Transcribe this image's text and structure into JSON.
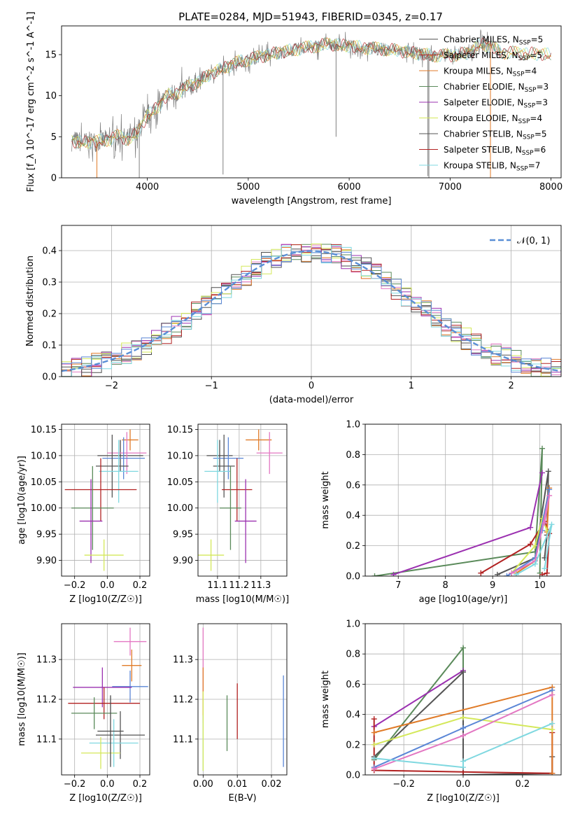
{
  "figure_title": "PLATE=0284, MJD=51943, FIBERID=0345, z=0.17",
  "colors": {
    "Chabrier MILES": "#4b4b4b",
    "Salpeter MILES": "#e377c2",
    "Kroupa MILES": "#e07b28",
    "Chabrier ELODIE": "#5a8a5a",
    "Salpeter ELODIE": "#9b30b0",
    "Kroupa ELODIE": "#d4e85a",
    "Chabrier STELIB": "#555555",
    "Salpeter STELIB": "#b22222",
    "Kroupa STELIB": "#7fd8e0",
    "blue": "#5a86d6",
    "normal_curve": "#5a8fd6",
    "spectrum_grey": "#7f7f7f",
    "grid": "#b0b0b0"
  },
  "chart_data": [
    {
      "id": "spectrum",
      "type": "line",
      "title": "PLATE=0284, MJD=51943, FIBERID=0345, z=0.17",
      "xlabel": "wavelength [Angstrom, rest frame]",
      "ylabel": "Flux [f_λ 10^-17 erg cm^-2 s^-1 A^-1]",
      "xlim": [
        3150,
        8100
      ],
      "ylim": [
        0,
        18.5
      ],
      "xticks": [
        4000,
        5000,
        6000,
        7000,
        8000
      ],
      "yticks": [
        0,
        5,
        10,
        15
      ],
      "grid": false,
      "legend_loc": "right",
      "legend": [
        {
          "label": "Chabrier MILES, N",
          "sub": "SSP",
          "n": "=5",
          "color_key": "Chabrier MILES"
        },
        {
          "label": "Salpeter MILES, N",
          "sub": "SSP",
          "n": "=5",
          "color_key": "Salpeter STELIB"
        },
        {
          "label": "Kroupa MILES, N",
          "sub": "SSP",
          "n": "=4",
          "color_key": "Kroupa MILES"
        },
        {
          "label": "Chabrier ELODIE, N",
          "sub": "SSP",
          "n": "=3",
          "color_key": "Chabrier ELODIE"
        },
        {
          "label": "Salpeter ELODIE, N",
          "sub": "SSP",
          "n": "=3",
          "color_key": "Salpeter ELODIE"
        },
        {
          "label": "Kroupa ELODIE, N",
          "sub": "SSP",
          "n": "=4",
          "color_key": "Kroupa ELODIE"
        },
        {
          "label": "Chabrier STELIB, N",
          "sub": "SSP",
          "n": "=5",
          "color_key": "Chabrier STELIB"
        },
        {
          "label": "Salpeter STELIB, N",
          "sub": "SSP",
          "n": "=6",
          "color_key": "Salpeter STELIB"
        },
        {
          "label": "Kroupa STELIB, N",
          "sub": "SSP",
          "n": "=7",
          "color_key": "Kroupa STELIB"
        }
      ],
      "continuum": [
        [
          3250,
          4.5
        ],
        [
          3400,
          4.3
        ],
        [
          3600,
          4.6
        ],
        [
          3700,
          5.1
        ],
        [
          3800,
          4.7
        ],
        [
          3900,
          5.4
        ],
        [
          4000,
          7.6
        ],
        [
          4100,
          8.6
        ],
        [
          4200,
          10.0
        ],
        [
          4300,
          10.4
        ],
        [
          4500,
          11.7
        ],
        [
          4700,
          13.1
        ],
        [
          4900,
          14.1
        ],
        [
          5200,
          15.0
        ],
        [
          5500,
          15.7
        ],
        [
          5800,
          16.3
        ],
        [
          6100,
          15.9
        ],
        [
          6400,
          15.6
        ],
        [
          6600,
          15.3
        ],
        [
          6800,
          14.9
        ],
        [
          7000,
          14.9
        ],
        [
          7200,
          15.2
        ],
        [
          7300,
          16.4
        ],
        [
          7400,
          16.0
        ],
        [
          7500,
          15.3
        ],
        [
          8000,
          15.0
        ]
      ],
      "spikes": [
        [
          4750,
          0.4
        ],
        [
          5870,
          5.0
        ],
        [
          6790,
          0.0
        ],
        [
          6780,
          0.2
        ],
        [
          7400,
          0.0
        ],
        [
          3500,
          0.0
        ],
        [
          3920,
          0.0
        ]
      ]
    },
    {
      "id": "residuals",
      "type": "histogram",
      "xlabel": "(data-model)/error",
      "ylabel": "Normed distribution",
      "xlim": [
        -2.5,
        2.5
      ],
      "ylim": [
        0,
        0.48
      ],
      "xticks": [
        -2,
        -1,
        0,
        1,
        2
      ],
      "yticks": [
        0.0,
        0.1,
        0.2,
        0.3,
        0.4
      ],
      "grid": true,
      "legend_loc": "upper right",
      "legend_label": "𝒩(0, 1)",
      "bin_width": 0.1
    },
    {
      "id": "age_vs_Z",
      "type": "scatter",
      "xlabel": "Z [log10(Z/Z☉)]",
      "ylabel": "age  [log10(age/yr)]",
      "xlim": [
        -0.28,
        0.26
      ],
      "ylim": [
        9.87,
        10.16
      ],
      "xticks": [
        -0.2,
        0.0,
        0.2
      ],
      "yticks": [
        9.9,
        9.95,
        10.0,
        10.05,
        10.1,
        10.15
      ],
      "grid": true,
      "points": [
        {
          "x": 0.14,
          "y": 10.13,
          "xerr": 0.05,
          "yerr": 0.02,
          "color_key": "Kroupa MILES"
        },
        {
          "x": 0.08,
          "y": 10.1,
          "xerr": 0.14,
          "yerr": 0.03,
          "color_key": "Chabrier MILES"
        },
        {
          "x": 0.12,
          "y": 10.105,
          "xerr": 0.12,
          "yerr": 0.04,
          "color_key": "Salpeter MILES"
        },
        {
          "x": 0.1,
          "y": 10.095,
          "xerr": 0.13,
          "yerr": 0.04,
          "color_key": "blue"
        },
        {
          "x": 0.03,
          "y": 10.08,
          "xerr": 0.1,
          "yerr": 0.06,
          "color_key": "Chabrier STELIB"
        },
        {
          "x": 0.07,
          "y": 10.07,
          "xerr": 0.12,
          "yerr": 0.06,
          "color_key": "Kroupa STELIB"
        },
        {
          "x": -0.04,
          "y": 10.035,
          "xerr": 0.22,
          "yerr": 0.06,
          "color_key": "Salpeter STELIB"
        },
        {
          "x": -0.09,
          "y": 10.0,
          "xerr": 0.13,
          "yerr": 0.08,
          "color_key": "Chabrier ELODIE"
        },
        {
          "x": -0.1,
          "y": 9.975,
          "xerr": 0.07,
          "yerr": 0.08,
          "color_key": "Salpeter ELODIE"
        },
        {
          "x": -0.02,
          "y": 9.91,
          "xerr": 0.12,
          "yerr": 0.03,
          "color_key": "Kroupa ELODIE"
        }
      ]
    },
    {
      "id": "age_vs_mass",
      "type": "scatter",
      "xlabel": "mass [log10(M/M☉)]",
      "ylabel": "",
      "xlim": [
        11.01,
        11.42
      ],
      "ylim": [
        9.87,
        10.16
      ],
      "xticks": [
        11.1,
        11.2,
        11.3
      ],
      "yticks": [
        9.9,
        9.95,
        10.0,
        10.05,
        10.1,
        10.15
      ],
      "grid": true,
      "points": [
        {
          "x": 11.29,
          "y": 10.13,
          "xerr": 0.06,
          "yerr": 0.02,
          "color_key": "Kroupa MILES"
        },
        {
          "x": 11.11,
          "y": 10.1,
          "xerr": 0.06,
          "yerr": 0.03,
          "color_key": "Chabrier MILES"
        },
        {
          "x": 11.34,
          "y": 10.105,
          "xerr": 0.06,
          "yerr": 0.04,
          "color_key": "Salpeter MILES"
        },
        {
          "x": 11.15,
          "y": 10.095,
          "xerr": 0.07,
          "yerr": 0.04,
          "color_key": "blue"
        },
        {
          "x": 11.13,
          "y": 10.08,
          "xerr": 0.05,
          "yerr": 0.06,
          "color_key": "Chabrier STELIB"
        },
        {
          "x": 11.1,
          "y": 10.07,
          "xerr": 0.06,
          "yerr": 0.06,
          "color_key": "Kroupa STELIB"
        },
        {
          "x": 11.19,
          "y": 10.035,
          "xerr": 0.07,
          "yerr": 0.06,
          "color_key": "Salpeter STELIB"
        },
        {
          "x": 11.16,
          "y": 10.0,
          "xerr": 0.05,
          "yerr": 0.08,
          "color_key": "Chabrier ELODIE"
        },
        {
          "x": 11.23,
          "y": 9.975,
          "xerr": 0.05,
          "yerr": 0.08,
          "color_key": "Salpeter ELODIE"
        },
        {
          "x": 11.07,
          "y": 9.91,
          "xerr": 0.06,
          "yerr": 0.03,
          "color_key": "Kroupa ELODIE"
        }
      ]
    },
    {
      "id": "mass_weight_vs_age",
      "type": "line",
      "xlabel": "age  [log10(age/yr)]",
      "ylabel": "mass weight",
      "xlim": [
        6.3,
        10.45
      ],
      "ylim": [
        0,
        1.0
      ],
      "xticks": [
        7,
        8,
        9,
        10
      ],
      "yticks": [
        0.0,
        0.2,
        0.4,
        0.6,
        0.8,
        1.0
      ],
      "grid": true,
      "series": [
        {
          "color_key": "Chabrier ELODIE",
          "x": [
            6.5,
            9.9,
            10.05,
            10.0
          ],
          "y": [
            0.0,
            0.16,
            0.84,
            0.02
          ]
        },
        {
          "color_key": "Salpeter ELODIE",
          "x": [
            6.9,
            9.8,
            10.05
          ],
          "y": [
            0.01,
            0.32,
            0.68
          ]
        },
        {
          "color_key": "Chabrier STELIB",
          "x": [
            9.1,
            9.9,
            10.18,
            10.15,
            10.1
          ],
          "y": [
            0.01,
            0.12,
            0.69,
            0.27,
            0.12
          ]
        },
        {
          "color_key": "Salpeter STELIB",
          "x": [
            8.75,
            9.8,
            10.1,
            10.2,
            10.15,
            10.05
          ],
          "y": [
            0.02,
            0.21,
            0.36,
            0.28,
            0.02,
            0.01
          ]
        },
        {
          "color_key": "Kroupa MILES",
          "x": [
            9.5,
            9.9,
            10.2,
            10.15
          ],
          "y": [
            0.02,
            0.1,
            0.58,
            0.29
          ]
        },
        {
          "color_key": "Kroupa ELODIE",
          "x": [
            9.4,
            9.9,
            10.05,
            10.15
          ],
          "y": [
            0.02,
            0.2,
            0.38,
            0.3
          ]
        },
        {
          "color_key": "blue",
          "x": [
            9.3,
            9.9,
            10.2,
            10.05
          ],
          "y": [
            0.0,
            0.12,
            0.57,
            0.3
          ]
        },
        {
          "color_key": "Salpeter MILES",
          "x": [
            9.4,
            9.9,
            10.2,
            10.1
          ],
          "y": [
            0.02,
            0.1,
            0.53,
            0.35
          ]
        },
        {
          "color_key": "Kroupa STELIB",
          "x": [
            9.5,
            9.9,
            10.25,
            10.1
          ],
          "y": [
            0.01,
            0.08,
            0.34,
            0.05
          ]
        }
      ]
    },
    {
      "id": "mass_vs_Z",
      "type": "scatter",
      "xlabel": "Z [log10(Z/Z☉)]",
      "ylabel": "mass [log10(M/M☉)]",
      "xlim": [
        -0.28,
        0.26
      ],
      "ylim": [
        11.01,
        11.39
      ],
      "xticks": [
        -0.2,
        0.0,
        0.2
      ],
      "yticks": [
        11.1,
        11.2,
        11.3
      ],
      "grid": true,
      "points": [
        {
          "x": 0.14,
          "y": 11.345,
          "xerr": 0.1,
          "yerr": 0.035,
          "color_key": "Salpeter MILES"
        },
        {
          "x": 0.15,
          "y": 11.285,
          "xerr": 0.06,
          "yerr": 0.04,
          "color_key": "Kroupa MILES"
        },
        {
          "x": 0.14,
          "y": 11.232,
          "xerr": 0.11,
          "yerr": 0.04,
          "color_key": "blue"
        },
        {
          "x": -0.03,
          "y": 11.23,
          "xerr": 0.18,
          "yerr": 0.05,
          "color_key": "Salpeter ELODIE"
        },
        {
          "x": -0.02,
          "y": 11.19,
          "xerr": 0.22,
          "yerr": 0.04,
          "color_key": "Salpeter STELIB"
        },
        {
          "x": -0.08,
          "y": 11.165,
          "xerr": 0.14,
          "yerr": 0.04,
          "color_key": "Chabrier ELODIE"
        },
        {
          "x": 0.08,
          "y": 11.11,
          "xerr": 0.15,
          "yerr": 0.06,
          "color_key": "Chabrier STELIB"
        },
        {
          "x": 0.04,
          "y": 11.09,
          "xerr": 0.15,
          "yerr": 0.06,
          "color_key": "Kroupa STELIB"
        },
        {
          "x": -0.04,
          "y": 11.065,
          "xerr": 0.12,
          "yerr": 0.04,
          "color_key": "Kroupa ELODIE"
        },
        {
          "x": 0.02,
          "y": 11.12,
          "xerr": 0.08,
          "yerr": 0.09,
          "color_key": "Chabrier MILES"
        }
      ]
    },
    {
      "id": "mass_vs_ebv",
      "type": "scatter",
      "xlabel": "E(B-V)",
      "ylabel": "",
      "xlim": [
        -0.0015,
        0.0245
      ],
      "ylim": [
        11.01,
        11.39
      ],
      "xticks": [
        0.0,
        0.01,
        0.02
      ],
      "yticks": [
        11.1,
        11.2,
        11.3
      ],
      "grid": true,
      "points": [
        {
          "x": 0.0,
          "y": 11.26,
          "xerr": 0.0,
          "yerr": 0.12,
          "color_key": "Salpeter MILES"
        },
        {
          "x": 0.0,
          "y": 11.22,
          "xerr": 0.0,
          "yerr": 0.06,
          "color_key": "Kroupa MILES"
        },
        {
          "x": 0.0,
          "y": 11.09,
          "xerr": 0.0,
          "yerr": 0.07,
          "color_key": "Kroupa STELIB"
        },
        {
          "x": 0.0,
          "y": 11.12,
          "xerr": 0.0,
          "yerr": 0.1,
          "color_key": "Kroupa ELODIE"
        },
        {
          "x": 0.007,
          "y": 11.14,
          "xerr": 0.0,
          "yerr": 0.07,
          "color_key": "Chabrier ELODIE"
        },
        {
          "x": 0.01,
          "y": 11.17,
          "xerr": 0.0,
          "yerr": 0.07,
          "color_key": "Salpeter STELIB"
        },
        {
          "x": 0.0235,
          "y": 11.145,
          "xerr": 0.0,
          "yerr": 0.115,
          "color_key": "blue"
        }
      ]
    },
    {
      "id": "mass_weight_vs_Z",
      "type": "line",
      "xlabel": "Z [log10(Z/Z☉)]",
      "ylabel": "mass weight",
      "xlim": [
        -0.33,
        0.33
      ],
      "ylim": [
        0,
        1.0
      ],
      "xticks": [
        -0.2,
        0.0,
        0.2
      ],
      "yticks": [
        0.0,
        0.2,
        0.4,
        0.6,
        0.8,
        1.0
      ],
      "grid": true,
      "series": [
        {
          "color_key": "Chabrier ELODIE",
          "x": [
            -0.3,
            0.0,
            0.0
          ],
          "y": [
            0.1,
            0.84,
            0.02
          ]
        },
        {
          "color_key": "Salpeter ELODIE",
          "x": [
            -0.3,
            0.0
          ],
          "y": [
            0.32,
            0.69
          ]
        },
        {
          "color_key": "Chabrier STELIB",
          "x": [
            -0.3,
            0.0,
            0.0,
            0.3,
            0.3
          ],
          "y": [
            0.12,
            0.68,
            0.0,
            0.01,
            0.12
          ]
        },
        {
          "color_key": "Salpeter STELIB",
          "x": [
            -0.3,
            -0.3,
            0.0,
            0.3,
            0.3
          ],
          "y": [
            0.37,
            0.03,
            0.02,
            0.01,
            0.28
          ]
        },
        {
          "color_key": "Kroupa MILES",
          "x": [
            -0.3,
            0.3,
            0.3
          ],
          "y": [
            0.28,
            0.58,
            0.01
          ]
        },
        {
          "color_key": "Kroupa ELODIE",
          "x": [
            -0.3,
            0.0,
            0.3
          ],
          "y": [
            0.2,
            0.38,
            0.3
          ]
        },
        {
          "color_key": "blue",
          "x": [
            -0.3,
            0.0,
            0.3
          ],
          "y": [
            0.05,
            0.31,
            0.56
          ]
        },
        {
          "color_key": "Salpeter MILES",
          "x": [
            -0.3,
            0.0,
            0.3
          ],
          "y": [
            0.04,
            0.26,
            0.53
          ]
        },
        {
          "color_key": "Kroupa STELIB",
          "x": [
            -0.3,
            0.0,
            0.0,
            0.3
          ],
          "y": [
            0.11,
            0.05,
            0.09,
            0.34
          ]
        }
      ]
    }
  ]
}
